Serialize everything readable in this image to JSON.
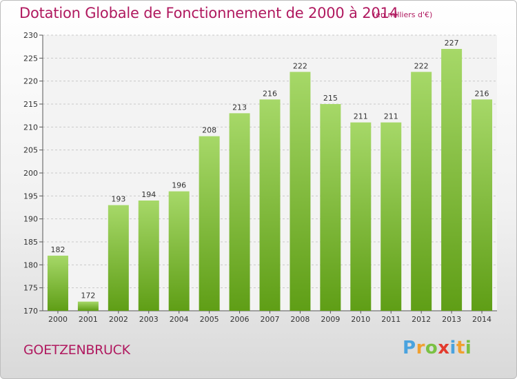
{
  "chart_data": {
    "type": "bar",
    "title": "Dotation Globale de Fonctionnement de 2000 à 2014",
    "subtitle": "(en milliers d'€)",
    "categories": [
      "2000",
      "2001",
      "2002",
      "2003",
      "2004",
      "2005",
      "2006",
      "2007",
      "2008",
      "2009",
      "2010",
      "2011",
      "2012",
      "2013",
      "2014"
    ],
    "values": [
      182,
      172,
      193,
      194,
      196,
      208,
      213,
      216,
      222,
      215,
      211,
      211,
      222,
      227,
      216
    ],
    "ylim": [
      170,
      230
    ],
    "yticks": [
      170,
      175,
      180,
      185,
      190,
      195,
      200,
      205,
      210,
      215,
      220,
      225,
      230
    ],
    "grid": true,
    "bar_color_top": "#a6d868",
    "bar_color_bottom": "#5f9e16"
  },
  "commune": "GOETZENBRUCK",
  "logo": {
    "text": "Proxiti",
    "letters": [
      "P",
      "r",
      "o",
      "x",
      "i",
      "t",
      "i"
    ],
    "colors": [
      "#4aa3df",
      "#f0a030",
      "#7ac143",
      "#e33b2e",
      "#4aa3df",
      "#f0a030",
      "#7ac143"
    ]
  },
  "accent_color": "#b0195f"
}
